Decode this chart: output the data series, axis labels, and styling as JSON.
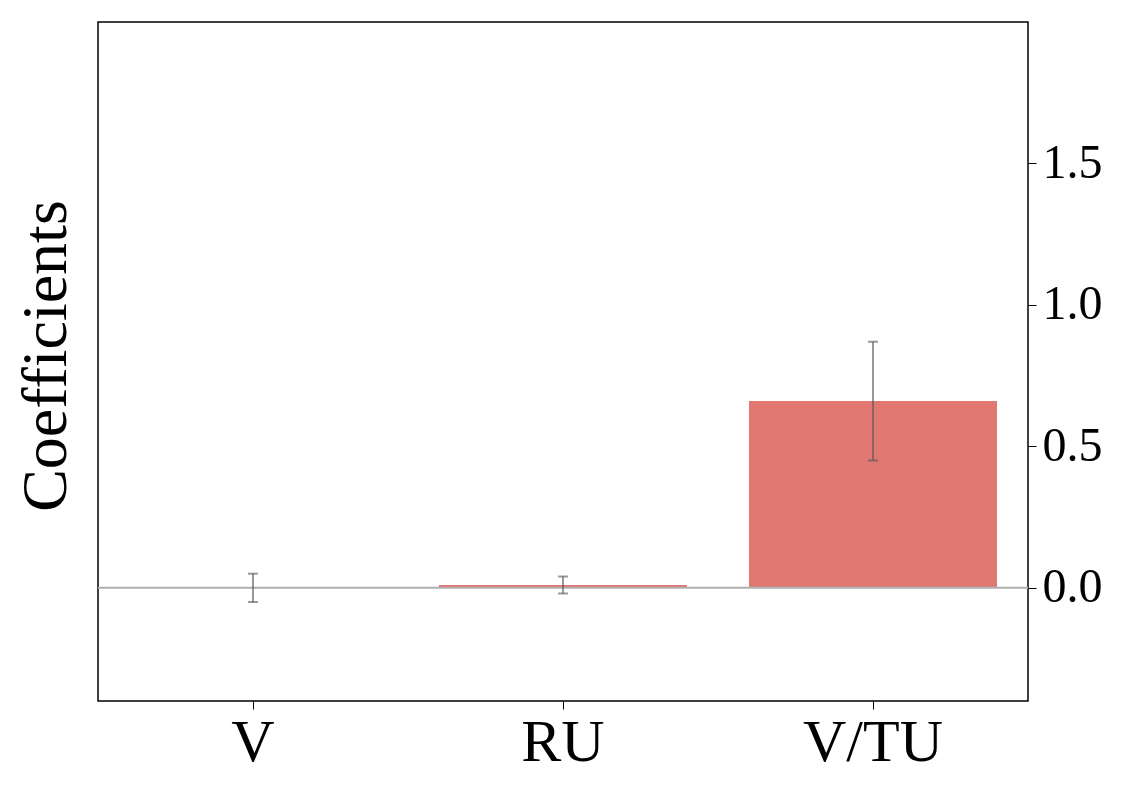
{
  "chart_data": {
    "type": "bar",
    "ylabel": "Coefficients",
    "categories": [
      "V",
      "RU",
      "V/TU"
    ],
    "values": [
      0,
      0.01,
      0.66
    ],
    "errors": [
      0.05,
      0.03,
      0.21
    ],
    "color": "#e07770",
    "ylim": [
      -0.4,
      2.0
    ],
    "yticks": [
      {
        "value": 0,
        "label": "0.0"
      },
      {
        "value": 0.5,
        "label": "0.5"
      },
      {
        "value": 1,
        "label": "1.0"
      },
      {
        "value": 1.5,
        "label": "1.5"
      }
    ],
    "ref_lines": [
      {
        "axis": "y",
        "value": 0,
        "color": "#b0b0b0"
      }
    ],
    "grid": false
  }
}
